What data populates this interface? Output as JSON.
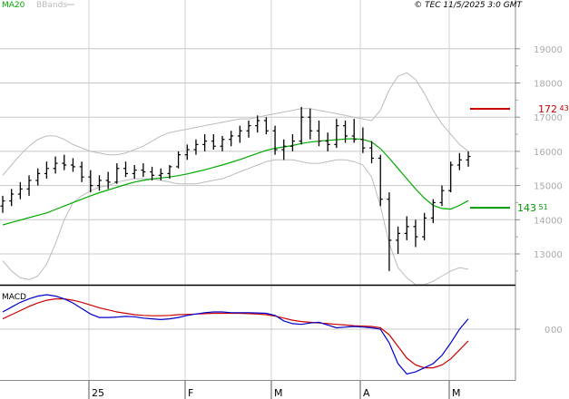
{
  "header": {
    "indicators": [
      "MA20",
      "BBands"
    ],
    "copyright": "© TEC 11/5/2025 3:0 GMT"
  },
  "chart_data": [
    {
      "type": "line",
      "panel": "price",
      "legend": [
        "MA20",
        "BBands"
      ],
      "y_ticks": [
        "19000",
        "18000",
        "17000",
        "16000",
        "15000",
        "14000",
        "13000"
      ],
      "ylim": [
        12100,
        20500
      ],
      "x_ticks": [
        "25",
        "F",
        "M",
        "A",
        "M"
      ],
      "levels": {
        "resistance": {
          "value": 17243,
          "label_main": "172",
          "label_sup": "43",
          "color": "#cc0000"
        },
        "support": {
          "value": 14351,
          "label_main": "143",
          "label_sup": "51",
          "color": "#009900"
        }
      },
      "bars": [
        [
          14400,
          14700,
          14200,
          14550
        ],
        [
          14550,
          14900,
          14400,
          14750
        ],
        [
          14750,
          15100,
          14600,
          14900
        ],
        [
          14900,
          15300,
          14700,
          15150
        ],
        [
          15150,
          15500,
          15000,
          15350
        ],
        [
          15350,
          15700,
          15200,
          15500
        ],
        [
          15500,
          15850,
          15350,
          15650
        ],
        [
          15650,
          15900,
          15450,
          15600
        ],
        [
          15600,
          15800,
          15400,
          15550
        ],
        [
          15550,
          15700,
          15100,
          15250
        ],
        [
          15250,
          15450,
          14800,
          15000
        ],
        [
          15000,
          15300,
          14850,
          15150
        ],
        [
          15150,
          15400,
          14900,
          15100
        ],
        [
          15100,
          15650,
          15050,
          15500
        ],
        [
          15500,
          15700,
          15250,
          15350
        ],
        [
          15350,
          15600,
          15200,
          15450
        ],
        [
          15450,
          15650,
          15250,
          15400
        ],
        [
          15400,
          15550,
          15150,
          15300
        ],
        [
          15300,
          15500,
          15150,
          15350
        ],
        [
          15350,
          15600,
          15200,
          15550
        ],
        [
          15550,
          16000,
          15500,
          15900
        ],
        [
          15900,
          16200,
          15750,
          16050
        ],
        [
          16050,
          16350,
          15900,
          16200
        ],
        [
          16200,
          16500,
          16000,
          16300
        ],
        [
          16300,
          16500,
          16050,
          16150
        ],
        [
          16150,
          16450,
          16000,
          16350
        ],
        [
          16350,
          16600,
          16150,
          16450
        ],
        [
          16450,
          16750,
          16250,
          16600
        ],
        [
          16600,
          16900,
          16400,
          16750
        ],
        [
          16750,
          17050,
          16550,
          16900
        ],
        [
          16900,
          17000,
          16500,
          16600
        ],
        [
          16600,
          16750,
          15900,
          16050
        ],
        [
          16050,
          16350,
          15750,
          16150
        ],
        [
          16150,
          16500,
          16000,
          16300
        ],
        [
          16300,
          17300,
          16200,
          17000
        ],
        [
          17000,
          17250,
          16350,
          16600
        ],
        [
          16600,
          16900,
          16150,
          16300
        ],
        [
          16300,
          16550,
          16000,
          16200
        ],
        [
          16200,
          16950,
          16100,
          16750
        ],
        [
          16750,
          16900,
          16250,
          16450
        ],
        [
          16450,
          16950,
          16250,
          16350
        ],
        [
          16350,
          16700,
          15950,
          16100
        ],
        [
          16100,
          16300,
          15650,
          15800
        ],
        [
          15800,
          15900,
          14400,
          14600
        ],
        [
          14600,
          14800,
          12500,
          13400
        ],
        [
          13400,
          13800,
          13000,
          13600
        ],
        [
          13600,
          14100,
          13400,
          13800
        ],
        [
          13800,
          14000,
          13200,
          13500
        ],
        [
          13500,
          14200,
          13400,
          14050
        ],
        [
          14050,
          14600,
          13900,
          14500
        ],
        [
          14500,
          15000,
          14400,
          14850
        ],
        [
          14850,
          15700,
          14800,
          15600
        ],
        [
          15600,
          15950,
          15450,
          15750
        ],
        [
          15750,
          16000,
          15550,
          15850
        ]
      ],
      "ma20": [
        13850,
        13920,
        13990,
        14060,
        14130,
        14200,
        14300,
        14400,
        14500,
        14600,
        14700,
        14790,
        14870,
        14950,
        15030,
        15100,
        15150,
        15190,
        15220,
        15250,
        15290,
        15340,
        15400,
        15460,
        15530,
        15600,
        15680,
        15760,
        15850,
        15940,
        16030,
        16090,
        16130,
        16170,
        16230,
        16270,
        16300,
        16320,
        16340,
        16360,
        16370,
        16350,
        16270,
        16080,
        15800,
        15500,
        15200,
        14900,
        14630,
        14420,
        14330,
        14310,
        14420,
        14560
      ],
      "bb_upper": [
        15300,
        15600,
        15900,
        16150,
        16350,
        16450,
        16450,
        16350,
        16200,
        16100,
        16000,
        15950,
        15900,
        15900,
        15950,
        16050,
        16150,
        16300,
        16450,
        16550,
        16600,
        16650,
        16700,
        16750,
        16800,
        16850,
        16900,
        16950,
        16950,
        17000,
        17050,
        17100,
        17150,
        17200,
        17250,
        17250,
        17200,
        17150,
        17100,
        17050,
        17000,
        16950,
        16900,
        17200,
        17800,
        18200,
        18300,
        18100,
        17700,
        17200,
        16800,
        16500,
        16200,
        16000
      ],
      "bb_lower": [
        12800,
        12500,
        12300,
        12250,
        12350,
        12700,
        13300,
        14000,
        14500,
        14700,
        14850,
        14950,
        15000,
        15100,
        15150,
        15200,
        15200,
        15200,
        15150,
        15100,
        15050,
        15050,
        15050,
        15100,
        15150,
        15200,
        15300,
        15400,
        15500,
        15600,
        15700,
        15750,
        15750,
        15750,
        15700,
        15650,
        15650,
        15700,
        15750,
        15750,
        15700,
        15600,
        15250,
        14400,
        13300,
        12600,
        12300,
        12100,
        12100,
        12200,
        12350,
        12500,
        12600,
        12550
      ]
    },
    {
      "type": "line",
      "panel": "macd",
      "legend": [
        "MACD"
      ],
      "y_ticks": [
        "0",
        "00"
      ],
      "ylim": [
        -700,
        580
      ],
      "macd": [
        250,
        320,
        390,
        440,
        480,
        500,
        480,
        440,
        380,
        300,
        220,
        170,
        170,
        175,
        185,
        180,
        160,
        150,
        140,
        150,
        170,
        200,
        220,
        240,
        250,
        250,
        240,
        240,
        240,
        235,
        230,
        200,
        120,
        80,
        70,
        90,
        100,
        60,
        20,
        30,
        40,
        30,
        20,
        0,
        -200,
        -500,
        -650,
        -620,
        -560,
        -500,
        -380,
        -200,
        0,
        150
      ],
      "signal": [
        150,
        210,
        270,
        330,
        380,
        420,
        440,
        440,
        420,
        390,
        350,
        310,
        280,
        250,
        230,
        210,
        200,
        195,
        195,
        200,
        210,
        215,
        220,
        225,
        230,
        230,
        230,
        230,
        225,
        220,
        210,
        190,
        160,
        130,
        110,
        100,
        90,
        80,
        70,
        60,
        50,
        45,
        40,
        20,
        -80,
        -250,
        -420,
        -520,
        -560,
        -560,
        -520,
        -430,
        -300,
        -170
      ]
    }
  ]
}
